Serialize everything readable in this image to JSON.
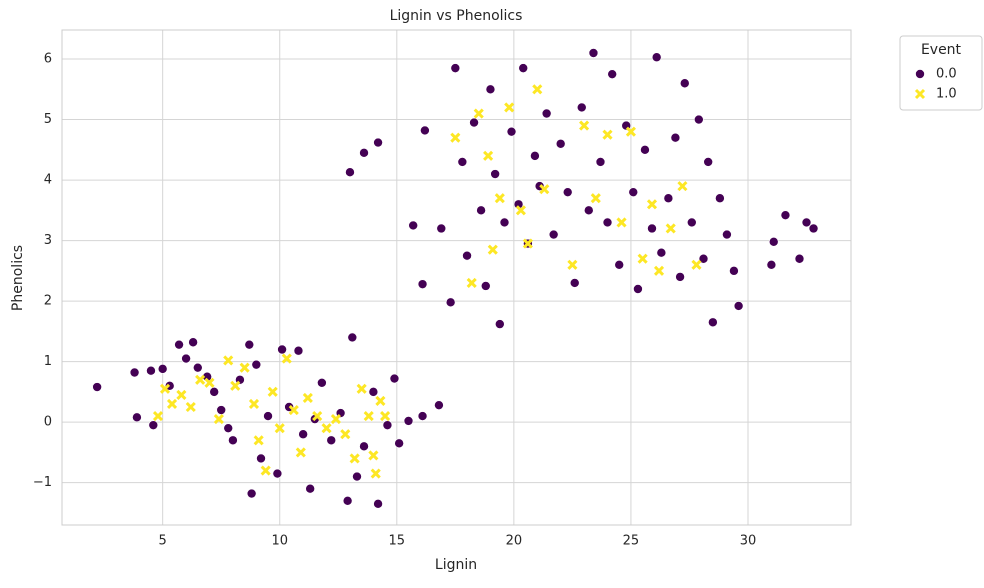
{
  "chart_data": {
    "type": "scatter",
    "title": "Lignin vs Phenolics",
    "x_label": "Lignin",
    "y_label": "Phenolics",
    "xlim": [
      0.7,
      34.4
    ],
    "ylim": [
      -1.7,
      6.48
    ],
    "xticks": [
      5,
      10,
      15,
      20,
      25,
      30
    ],
    "yticks": [
      {
        "value": -1,
        "label": "−1"
      },
      0,
      1,
      2,
      3,
      4,
      5,
      6
    ],
    "grid": true,
    "legend_title": "Event",
    "legend_position": "outside-upper-right",
    "series": [
      {
        "name": "0.0",
        "color": "#440154",
        "marker": "circle",
        "x": [
          2.2,
          3.8,
          3.9,
          4.5,
          4.6,
          5.0,
          5.3,
          5.7,
          6.0,
          6.3,
          6.5,
          6.9,
          7.2,
          7.5,
          7.8,
          8.0,
          8.3,
          8.7,
          8.8,
          9.0,
          9.2,
          9.5,
          9.9,
          10.1,
          10.4,
          10.8,
          11.0,
          11.3,
          11.5,
          11.8,
          12.2,
          12.6,
          12.9,
          13.1,
          13.3,
          13.6,
          14.0,
          14.2,
          14.6,
          14.9,
          15.1,
          15.5,
          16.1,
          16.8,
          13.0,
          13.6,
          14.2,
          15.7,
          16.1,
          16.2,
          16.9,
          17.3,
          17.5,
          17.8,
          18.0,
          18.3,
          18.6,
          18.8,
          19.0,
          19.2,
          19.4,
          19.6,
          19.9,
          20.2,
          20.4,
          20.6,
          20.9,
          21.1,
          21.4,
          21.7,
          22.0,
          22.3,
          22.6,
          22.9,
          23.2,
          23.4,
          23.7,
          24.0,
          24.2,
          24.5,
          24.8,
          25.1,
          25.3,
          25.6,
          25.9,
          26.1,
          26.3,
          26.6,
          26.9,
          27.1,
          27.3,
          27.6,
          27.9,
          28.1,
          28.3,
          28.5,
          28.8,
          29.1,
          29.4,
          29.6,
          31.0,
          31.1,
          31.6,
          32.2,
          32.5,
          32.8
        ],
        "y": [
          0.58,
          0.82,
          0.08,
          0.85,
          -0.05,
          0.88,
          0.6,
          1.28,
          1.05,
          1.32,
          0.9,
          0.75,
          0.5,
          0.2,
          -0.1,
          -0.3,
          0.7,
          1.28,
          -1.18,
          0.95,
          -0.6,
          0.1,
          -0.85,
          1.2,
          0.25,
          1.18,
          -0.2,
          -1.1,
          0.05,
          0.65,
          -0.3,
          0.15,
          -1.3,
          1.4,
          -0.9,
          -0.4,
          0.5,
          -1.35,
          -0.05,
          0.72,
          -0.35,
          0.02,
          0.1,
          0.28,
          4.13,
          4.45,
          4.62,
          3.25,
          2.28,
          4.82,
          3.2,
          1.98,
          5.85,
          4.3,
          2.75,
          4.95,
          3.5,
          2.25,
          5.5,
          4.1,
          1.62,
          3.3,
          4.8,
          3.6,
          5.85,
          2.95,
          4.4,
          3.9,
          5.1,
          3.1,
          4.6,
          3.8,
          2.3,
          5.2,
          3.5,
          6.1,
          4.3,
          3.3,
          5.75,
          2.6,
          4.9,
          3.8,
          2.2,
          4.5,
          3.2,
          6.03,
          2.8,
          3.7,
          4.7,
          2.4,
          5.6,
          3.3,
          5.0,
          2.7,
          4.3,
          1.65,
          3.7,
          3.1,
          2.5,
          1.92,
          2.6,
          2.98,
          3.42,
          2.7,
          3.3,
          3.2
        ]
      },
      {
        "name": "1.0",
        "color": "#fde725",
        "marker": "x",
        "x": [
          4.8,
          5.1,
          5.4,
          5.8,
          6.2,
          6.6,
          7.0,
          7.4,
          7.8,
          8.1,
          8.5,
          8.9,
          9.1,
          9.4,
          9.7,
          10.0,
          10.3,
          10.6,
          10.9,
          11.2,
          11.6,
          12.0,
          12.4,
          12.8,
          13.2,
          13.5,
          13.8,
          14.0,
          14.3,
          14.5,
          14.1,
          17.5,
          18.2,
          18.5,
          18.9,
          19.1,
          19.4,
          19.8,
          20.3,
          20.6,
          21.0,
          21.3,
          22.5,
          23.0,
          23.5,
          24.0,
          24.6,
          25.0,
          25.5,
          25.9,
          26.2,
          26.7,
          27.2,
          27.8
        ],
        "y": [
          0.1,
          0.55,
          0.3,
          0.45,
          0.25,
          0.7,
          0.65,
          0.05,
          1.02,
          0.6,
          0.9,
          0.3,
          -0.3,
          -0.8,
          0.5,
          -0.1,
          1.05,
          0.2,
          -0.5,
          0.4,
          0.1,
          -0.1,
          0.05,
          -0.2,
          -0.6,
          0.55,
          0.1,
          -0.55,
          0.35,
          0.1,
          -0.85,
          4.7,
          2.3,
          5.1,
          4.4,
          2.85,
          3.7,
          5.2,
          3.5,
          2.95,
          5.5,
          3.85,
          2.6,
          4.9,
          3.7,
          4.75,
          3.3,
          4.8,
          2.7,
          3.6,
          2.5,
          3.2,
          3.9,
          2.6
        ]
      }
    ]
  }
}
